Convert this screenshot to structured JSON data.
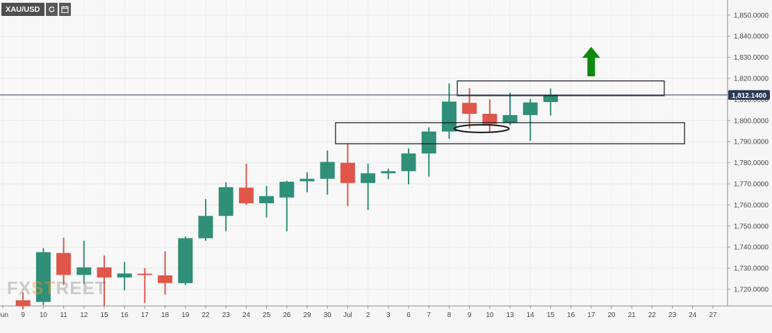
{
  "toolbar": {
    "symbol": "XAU/USD",
    "refresh_icon": "refresh-icon",
    "calendar_icon": "calendar-icon"
  },
  "watermark": {
    "part1": "FX",
    "part2": "ST",
    "part3": "REET"
  },
  "colors": {
    "bull": "#2f8f78",
    "bear": "#e0564a",
    "arrow": "#0f8a0f",
    "price_line": "#2b3a55",
    "price_badge": "#2b3a55"
  },
  "chart_data": {
    "type": "candlestick",
    "title": "",
    "ylim": [
      1711,
      1853
    ],
    "y_ticks": [
      1720,
      1730,
      1740,
      1750,
      1760,
      1770,
      1780,
      1790,
      1800,
      1810,
      1820,
      1830,
      1840,
      1850
    ],
    "y_tick_labels": [
      "1,720.0000",
      "1,730.0000",
      "1,740.0000",
      "1,750.0000",
      "1,760.0000",
      "1,770.0000",
      "1,780.0000",
      "1,790.0000",
      "1,800.0000",
      "1,810.0000",
      "1,820.0000",
      "1,830.0000",
      "1,840.0000",
      "1,850.0000"
    ],
    "x_labels": [
      "Jun",
      "9",
      "10",
      "11",
      "12",
      "15",
      "16",
      "17",
      "18",
      "19",
      "22",
      "23",
      "24",
      "25",
      "26",
      "29",
      "30",
      "Jul",
      "2",
      "3",
      "6",
      "7",
      "8",
      "9",
      "10",
      "13",
      "14",
      "15",
      "16",
      "17",
      "20",
      "21",
      "22",
      "23",
      "24",
      "27"
    ],
    "current_price": 1812.14,
    "current_price_label": "1,812.1400",
    "candles": [
      {
        "open": 1714.8,
        "high": 1718.5,
        "low": 1710.5,
        "close": 1712.0
      },
      {
        "open": 1714.0,
        "high": 1739.5,
        "low": 1712.5,
        "close": 1737.6
      },
      {
        "open": 1737.2,
        "high": 1744.5,
        "low": 1722.0,
        "close": 1726.8
      },
      {
        "open": 1726.8,
        "high": 1743.0,
        "low": 1722.5,
        "close": 1730.4
      },
      {
        "open": 1730.4,
        "high": 1736.0,
        "low": 1712.0,
        "close": 1725.6
      },
      {
        "open": 1725.6,
        "high": 1733.0,
        "low": 1719.5,
        "close": 1727.5
      },
      {
        "open": 1727.4,
        "high": 1730.0,
        "low": 1713.5,
        "close": 1727.0
      },
      {
        "open": 1726.6,
        "high": 1738.0,
        "low": 1717.5,
        "close": 1723.0
      },
      {
        "open": 1722.9,
        "high": 1745.0,
        "low": 1722.0,
        "close": 1744.2
      },
      {
        "open": 1744.2,
        "high": 1762.8,
        "low": 1743.0,
        "close": 1754.8
      },
      {
        "open": 1754.8,
        "high": 1770.8,
        "low": 1747.5,
        "close": 1768.4
      },
      {
        "open": 1768.2,
        "high": 1779.5,
        "low": 1760.0,
        "close": 1760.8
      },
      {
        "open": 1760.8,
        "high": 1769.0,
        "low": 1754.0,
        "close": 1764.2
      },
      {
        "open": 1763.5,
        "high": 1771.5,
        "low": 1747.5,
        "close": 1771.0
      },
      {
        "open": 1771.2,
        "high": 1775.5,
        "low": 1766.0,
        "close": 1772.4
      },
      {
        "open": 1772.4,
        "high": 1785.8,
        "low": 1764.8,
        "close": 1780.4
      },
      {
        "open": 1780.0,
        "high": 1789.2,
        "low": 1759.4,
        "close": 1770.4
      },
      {
        "open": 1770.4,
        "high": 1779.6,
        "low": 1757.6,
        "close": 1775.0
      },
      {
        "open": 1775.0,
        "high": 1777.2,
        "low": 1772.2,
        "close": 1776.0
      },
      {
        "open": 1776.0,
        "high": 1786.8,
        "low": 1769.8,
        "close": 1784.4
      },
      {
        "open": 1784.4,
        "high": 1796.8,
        "low": 1773.4,
        "close": 1794.8
      },
      {
        "open": 1794.8,
        "high": 1817.6,
        "low": 1791.4,
        "close": 1809.0
      },
      {
        "open": 1808.4,
        "high": 1815.4,
        "low": 1796.2,
        "close": 1803.2
      },
      {
        "open": 1803.2,
        "high": 1810.0,
        "low": 1794.2,
        "close": 1798.4
      },
      {
        "open": 1798.8,
        "high": 1813.2,
        "low": 1797.8,
        "close": 1802.6
      },
      {
        "open": 1802.6,
        "high": 1810.2,
        "low": 1790.4,
        "close": 1808.6
      },
      {
        "open": 1808.8,
        "high": 1815.2,
        "low": 1802.4,
        "close": 1812.2
      }
    ],
    "annotations": {
      "upper_box": {
        "x_start": 22.4,
        "x_end": 32.6,
        "y_low": 1811.8,
        "y_high": 1818.8
      },
      "lower_box": {
        "x_start": 16.4,
        "x_end": 33.6,
        "y_low": 1789.0,
        "y_high": 1799.0
      },
      "ellipse": {
        "x_center": 23.6,
        "y_center": 1796.2,
        "x_radius": 1.35,
        "y_radius": 1.8
      },
      "up_arrow": {
        "x": 29.0,
        "y_base": 1821.0,
        "y_tip": 1835.0
      }
    }
  }
}
